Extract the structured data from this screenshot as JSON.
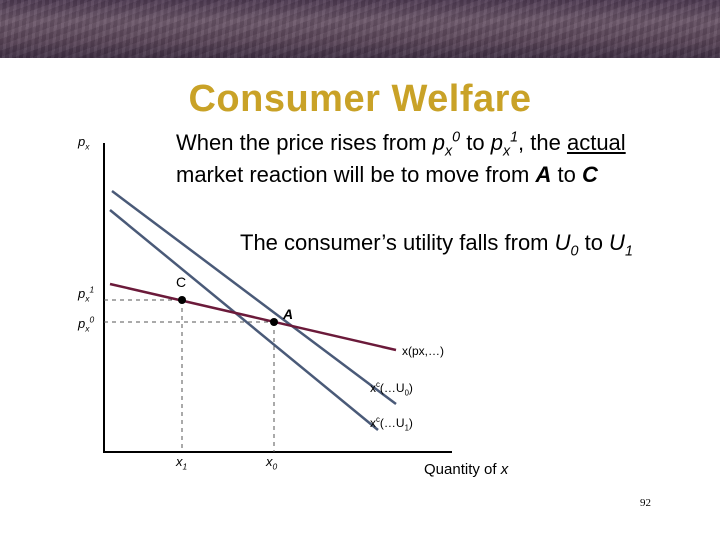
{
  "slide": {
    "title": "Consumer Welfare",
    "page_number": "92"
  },
  "text": {
    "line1": {
      "a": "When the price rises from ",
      "p0": "p",
      "p0_sub": "x",
      "p0_sup": "0",
      "to": " to ",
      "p1": "p",
      "p1_sub": "x",
      "p1_sup": "1",
      "comma": ", the ",
      "actual": "actual"
    },
    "line2": {
      "a": "market reaction will be to move from ",
      "A": "A",
      "to": " to ",
      "C": "C"
    },
    "utility": {
      "a": "The consumer’s utility falls from ",
      "U0": "U",
      "U0_sub": "0",
      "to": " to ",
      "U1": "U",
      "U1_sub": "1"
    }
  },
  "diagram": {
    "y_axis_label": {
      "p": "p",
      "sub": "x"
    },
    "price_ticks": [
      {
        "p": "p",
        "sub": "x",
        "sup": "1"
      },
      {
        "p": "p",
        "sub": "x",
        "sup": "0"
      }
    ],
    "point_labels": {
      "C": "C",
      "A": "A"
    },
    "curve_labels": {
      "marshallian": "x(px,…)",
      "hicks_u0": {
        "x": "x",
        "sup": "c",
        "rest": "(…U",
        "sub": "0",
        "close": ")"
      },
      "hicks_u1": {
        "x": "x",
        "sup": "c",
        "rest": "(…U",
        "sub": "1",
        "close": ")"
      }
    },
    "quantity_ticks": [
      {
        "x": "x",
        "sub": "1"
      },
      {
        "x": "x",
        "sub": "0"
      }
    ],
    "x_axis_label": {
      "a": "Quantity of ",
      "x": "x"
    },
    "colors": {
      "marshallian": "#6b1a3a",
      "hicks": "#4a5a78",
      "axis": "#000000",
      "title": "#c9a227"
    }
  }
}
